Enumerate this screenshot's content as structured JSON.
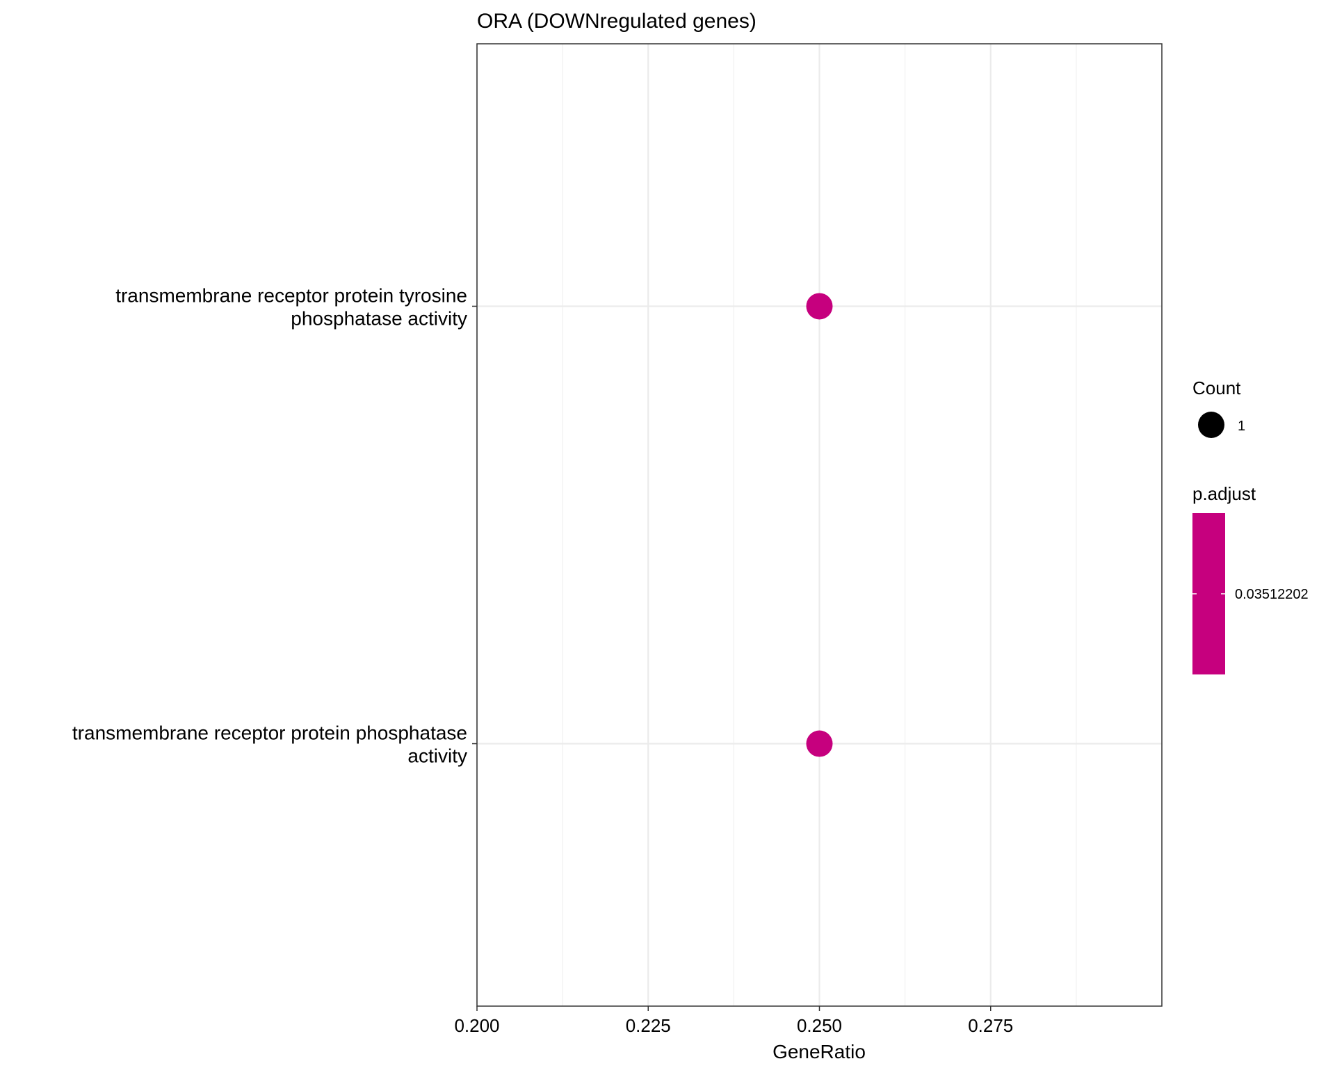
{
  "chart_data": {
    "type": "scatter",
    "title": "ORA (DOWNregulated genes)",
    "xlabel": "GeneRatio",
    "ylabel": "",
    "xlim": [
      0.2,
      0.3
    ],
    "x_ticks": [
      "0.200",
      "0.225",
      "0.250",
      "0.275"
    ],
    "x_tick_values": [
      0.2,
      0.225,
      0.25,
      0.275
    ],
    "categories": [
      [
        "transmembrane receptor protein phosphatase",
        "activity"
      ],
      [
        "transmembrane receptor protein tyrosine",
        "phosphatase activity"
      ]
    ],
    "points": [
      {
        "category_index": 0,
        "x": 0.25,
        "count": 1,
        "p_adjust": 0.03512202
      },
      {
        "category_index": 1,
        "x": 0.25,
        "count": 1,
        "p_adjust": 0.03512202
      }
    ],
    "grid": true,
    "point_color": "#C6007E",
    "legend": {
      "placement": "right",
      "size_title": "Count",
      "size_entries": [
        "1"
      ],
      "color_title": "p.adjust",
      "color_label": "0.03512202"
    }
  }
}
